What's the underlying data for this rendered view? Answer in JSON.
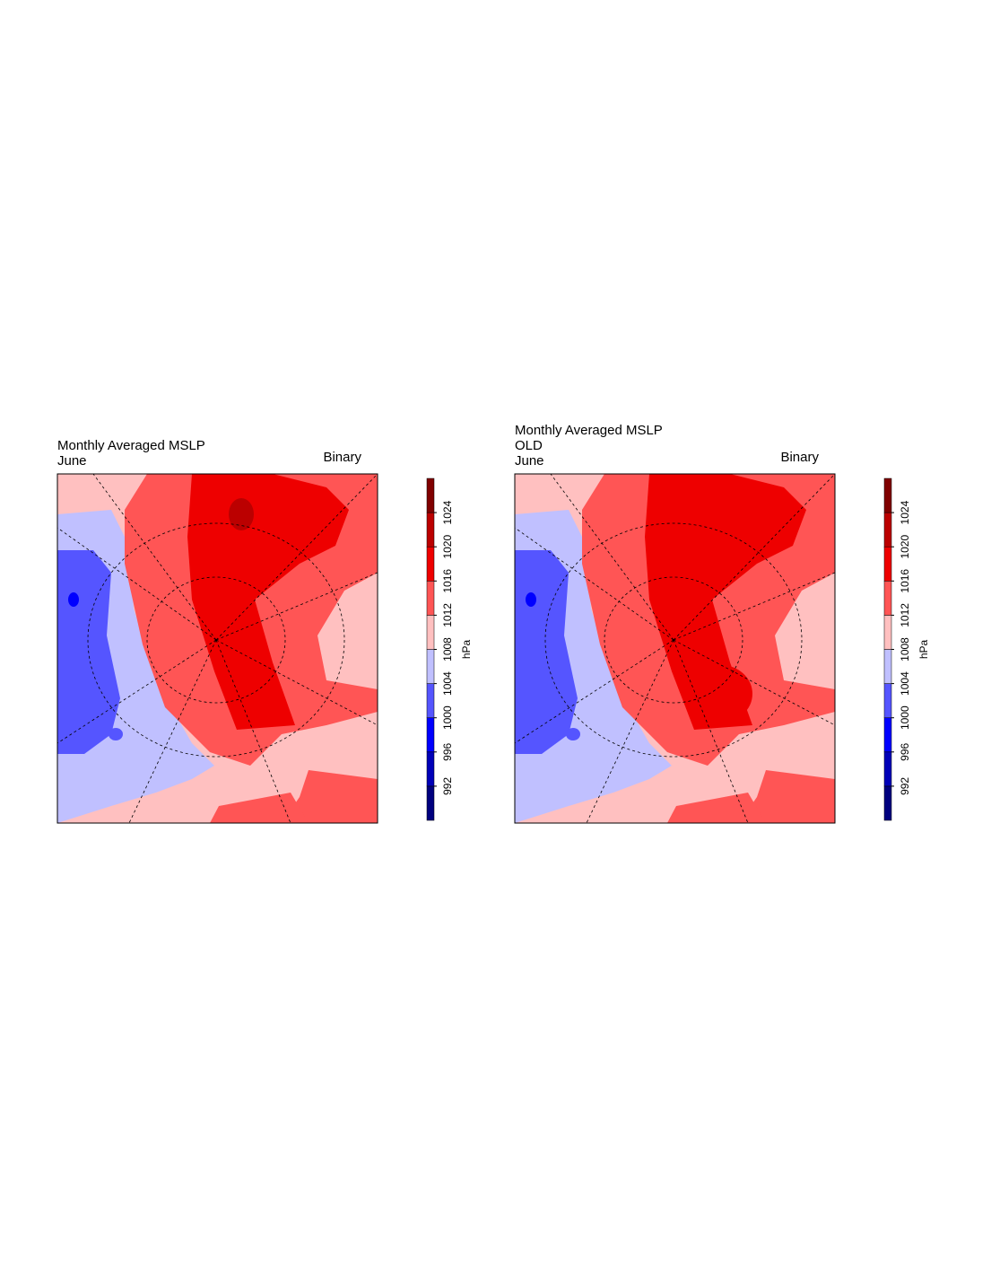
{
  "panels": [
    {
      "title": [
        "Monthly Averaged MSLP",
        "June"
      ],
      "label": "Binary"
    },
    {
      "title": [
        "Monthly Averaged MSLP",
        "OLD",
        "June"
      ],
      "label": "Binary"
    }
  ],
  "colorbar": {
    "ticks": [
      992,
      996,
      1000,
      1004,
      1008,
      1012,
      1016,
      1020,
      1024
    ],
    "colors": [
      "#00007f",
      "#0000b8",
      "#0000ff",
      "#5555ff",
      "#c0c0ff",
      "#ffc0c0",
      "#ff5555",
      "#ee0000",
      "#bb0000",
      "#800000"
    ],
    "units": "hPa"
  }
}
